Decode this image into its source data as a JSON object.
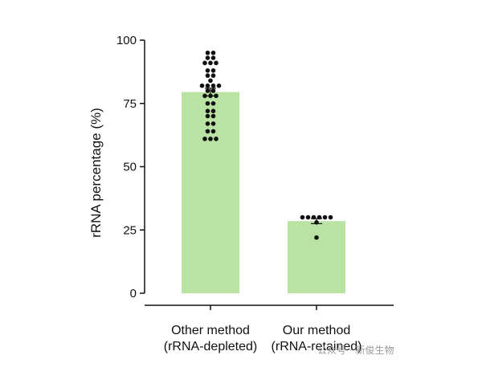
{
  "chart_data": {
    "type": "bar",
    "title": "",
    "xlabel": "",
    "ylabel": "rRNA percentage (%)",
    "ylim": [
      0,
      100
    ],
    "yticks": [
      0,
      25,
      50,
      75,
      100
    ],
    "grid": false,
    "bar_color": "#b9e2a3",
    "point_color": "#111111",
    "categories": [
      {
        "line1": "Other method",
        "line2": "(rRNA-depleted)"
      },
      {
        "line1": "Our method",
        "line2": "(rRNA-retained)"
      }
    ],
    "values": [
      79.5,
      28.5
    ],
    "errors": [
      1.5,
      1.0
    ],
    "points": [
      [
        95,
        95,
        93,
        93,
        91,
        91,
        91,
        88,
        88,
        86,
        86,
        84,
        82,
        82,
        82,
        82,
        80,
        80,
        78,
        78,
        78,
        75,
        75,
        72,
        72,
        70,
        70,
        67,
        67,
        64,
        64,
        61,
        61,
        61
      ],
      [
        30,
        30,
        30,
        30,
        30,
        30,
        28,
        22
      ]
    ]
  },
  "watermark": {
    "text": "公众号 · 新俊生物"
  }
}
